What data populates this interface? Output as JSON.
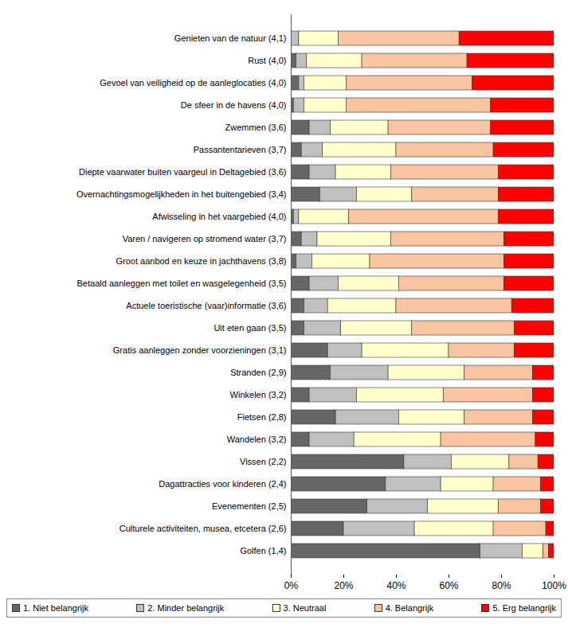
{
  "chart_data": {
    "type": "bar",
    "orientation": "horizontal",
    "stacked": true,
    "categories": [
      "Genieten van de natuur (4,1)",
      "Rust (4,0)",
      "Gevoel van veiligheid op de aanleglocaties (4,0)",
      "De sfeer in de havens (4,0)",
      "Zwemmen (3,6)",
      "Passantentarieven (3,7)",
      "Diepte vaarwater buiten vaargeul in Deltagebied (3,6)",
      "Overnachtingsmogelijkheden in het buitengebied (3,4)",
      "Afwisseling in het vaargebied (4,0)",
      "Varen / navigeren op stromend water (3,7)",
      "Groot aanbod en keuze in jachthavens (3,8)",
      "Betaald aanleggen met toilet en wasgelegenheid (3,5)",
      "Actuele toeristische (vaar)informatie (3,6)",
      "Uit eten gaan (3,5)",
      "Gratis aanleggen zonder voorzieningen (3,1)",
      "Stranden (2,9)",
      "Winkelen (3,2)",
      "Fietsen (2,8)",
      "Wandelen (3,2)",
      "Vissen (2,2)",
      "Dagattracties voor kinderen (2,4)",
      "Evenementen (2,5)",
      "Culturele activiteiten, musea, etcetera (2,6)",
      "Golfen (1,4)"
    ],
    "series": [
      {
        "name": "1. Niet belangrijk",
        "color": "#666666",
        "values": [
          0,
          2,
          3,
          1,
          7,
          4,
          7,
          11,
          1,
          4,
          2,
          7,
          5,
          5,
          14,
          15,
          7,
          17,
          7,
          43,
          36,
          29,
          20,
          72
        ]
      },
      {
        "name": "2. Minder belangrijk",
        "color": "#c0c0c0",
        "values": [
          3,
          4,
          2,
          4,
          8,
          8,
          10,
          14,
          2,
          6,
          6,
          11,
          9,
          14,
          13,
          22,
          18,
          24,
          17,
          18,
          21,
          23,
          27,
          16
        ]
      },
      {
        "name": "3. Neutraal",
        "color": "#ffffcc",
        "values": [
          15,
          21,
          16,
          16,
          22,
          28,
          21,
          21,
          19,
          28,
          22,
          23,
          26,
          27,
          33,
          29,
          33,
          25,
          33,
          22,
          20,
          27,
          30,
          8
        ]
      },
      {
        "name": "4. Belangrijk",
        "color": "#f9c4a0",
        "values": [
          46,
          40,
          48,
          55,
          39,
          37,
          41,
          33,
          57,
          43,
          51,
          40,
          44,
          39,
          25,
          26,
          34,
          26,
          36,
          11,
          18,
          16,
          20,
          2
        ]
      },
      {
        "name": "5. Erg belangrijk",
        "color": "#ff0000",
        "values": [
          36,
          33,
          31,
          24,
          24,
          23,
          21,
          21,
          21,
          19,
          19,
          19,
          16,
          15,
          15,
          8,
          8,
          8,
          7,
          6,
          5,
          5,
          3,
          2
        ]
      }
    ],
    "xlim": [
      0,
      100
    ],
    "xticks": [
      {
        "value": 0,
        "label": "0%"
      },
      {
        "value": 20,
        "label": "20%"
      },
      {
        "value": 40,
        "label": "40%"
      },
      {
        "value": 60,
        "label": "60%"
      },
      {
        "value": 80,
        "label": "80%"
      },
      {
        "value": 100,
        "label": "100%"
      }
    ]
  }
}
